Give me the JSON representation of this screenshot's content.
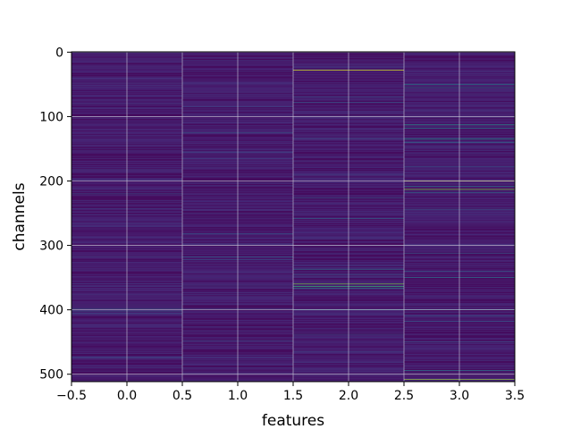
{
  "chart_data": {
    "type": "heatmap",
    "title": "",
    "xlabel": "features",
    "ylabel": "channels",
    "xlim": [
      -0.5,
      3.5
    ],
    "ylim": [
      511.5,
      -0.5
    ],
    "x_ticks": [
      -0.5,
      0.0,
      0.5,
      1.0,
      1.5,
      2.0,
      2.5,
      3.0,
      3.5
    ],
    "x_tick_labels": [
      "−0.5",
      "0.0",
      "0.5",
      "1.0",
      "1.5",
      "2.0",
      "2.5",
      "3.0",
      "3.5"
    ],
    "y_ticks": [
      0,
      100,
      200,
      300,
      400,
      500
    ],
    "y_tick_labels": [
      "0",
      "100",
      "200",
      "300",
      "400",
      "500"
    ],
    "grid": true,
    "colormap": "viridis",
    "n_rows": 512,
    "n_cols": 4,
    "background_level": 0.04,
    "highlights": [
      {
        "col": 0,
        "row": 42,
        "v": 0.2
      },
      {
        "col": 0,
        "row": 80,
        "v": 0.22
      },
      {
        "col": 0,
        "row": 95,
        "v": 0.18
      },
      {
        "col": 0,
        "row": 220,
        "v": 0.3
      },
      {
        "col": 0,
        "row": 243,
        "v": 0.25
      },
      {
        "col": 0,
        "row": 318,
        "v": 0.25
      },
      {
        "col": 0,
        "row": 398,
        "v": 0.38
      },
      {
        "col": 0,
        "row": 402,
        "v": 0.35
      },
      {
        "col": 0,
        "row": 405,
        "v": 0.3
      },
      {
        "col": 0,
        "row": 474,
        "v": 0.35
      },
      {
        "col": 0,
        "row": 490,
        "v": 0.2
      },
      {
        "col": 1,
        "row": 30,
        "v": 0.2
      },
      {
        "col": 1,
        "row": 85,
        "v": 0.25
      },
      {
        "col": 1,
        "row": 125,
        "v": 0.35
      },
      {
        "col": 1,
        "row": 155,
        "v": 0.3
      },
      {
        "col": 1,
        "row": 165,
        "v": 0.25
      },
      {
        "col": 1,
        "row": 250,
        "v": 0.2
      },
      {
        "col": 1,
        "row": 282,
        "v": 0.35
      },
      {
        "col": 1,
        "row": 318,
        "v": 0.4
      },
      {
        "col": 1,
        "row": 322,
        "v": 0.3
      },
      {
        "col": 1,
        "row": 363,
        "v": 0.25
      },
      {
        "col": 1,
        "row": 398,
        "v": 0.25
      },
      {
        "col": 1,
        "row": 448,
        "v": 0.3
      },
      {
        "col": 1,
        "row": 478,
        "v": 0.22
      },
      {
        "col": 2,
        "row": 28,
        "v": 0.95
      },
      {
        "col": 2,
        "row": 70,
        "v": 0.3
      },
      {
        "col": 2,
        "row": 78,
        "v": 0.35
      },
      {
        "col": 2,
        "row": 134,
        "v": 0.3
      },
      {
        "col": 2,
        "row": 190,
        "v": 0.25
      },
      {
        "col": 2,
        "row": 226,
        "v": 0.35
      },
      {
        "col": 2,
        "row": 258,
        "v": 0.45
      },
      {
        "col": 2,
        "row": 290,
        "v": 0.2
      },
      {
        "col": 2,
        "row": 337,
        "v": 0.45
      },
      {
        "col": 2,
        "row": 345,
        "v": 0.35
      },
      {
        "col": 2,
        "row": 360,
        "v": 0.85
      },
      {
        "col": 2,
        "row": 364,
        "v": 0.75
      },
      {
        "col": 2,
        "row": 367,
        "v": 0.6
      },
      {
        "col": 2,
        "row": 400,
        "v": 0.55
      },
      {
        "col": 2,
        "row": 438,
        "v": 0.3
      },
      {
        "col": 2,
        "row": 465,
        "v": 0.25
      },
      {
        "col": 3,
        "row": 50,
        "v": 0.55
      },
      {
        "col": 3,
        "row": 55,
        "v": 0.45
      },
      {
        "col": 3,
        "row": 113,
        "v": 0.65
      },
      {
        "col": 3,
        "row": 118,
        "v": 0.5
      },
      {
        "col": 3,
        "row": 135,
        "v": 0.6
      },
      {
        "col": 3,
        "row": 140,
        "v": 0.45
      },
      {
        "col": 3,
        "row": 178,
        "v": 0.3
      },
      {
        "col": 3,
        "row": 200,
        "v": 0.95
      },
      {
        "col": 3,
        "row": 208,
        "v": 0.55
      },
      {
        "col": 3,
        "row": 213,
        "v": 0.85
      },
      {
        "col": 3,
        "row": 218,
        "v": 0.45
      },
      {
        "col": 3,
        "row": 244,
        "v": 0.35
      },
      {
        "col": 3,
        "row": 312,
        "v": 0.35
      },
      {
        "col": 3,
        "row": 340,
        "v": 0.4
      },
      {
        "col": 3,
        "row": 350,
        "v": 0.45
      },
      {
        "col": 3,
        "row": 400,
        "v": 0.5
      },
      {
        "col": 3,
        "row": 410,
        "v": 0.4
      },
      {
        "col": 3,
        "row": 418,
        "v": 0.35
      },
      {
        "col": 3,
        "row": 450,
        "v": 0.3
      },
      {
        "col": 3,
        "row": 494,
        "v": 0.55
      },
      {
        "col": 3,
        "row": 508,
        "v": 0.9
      }
    ]
  }
}
